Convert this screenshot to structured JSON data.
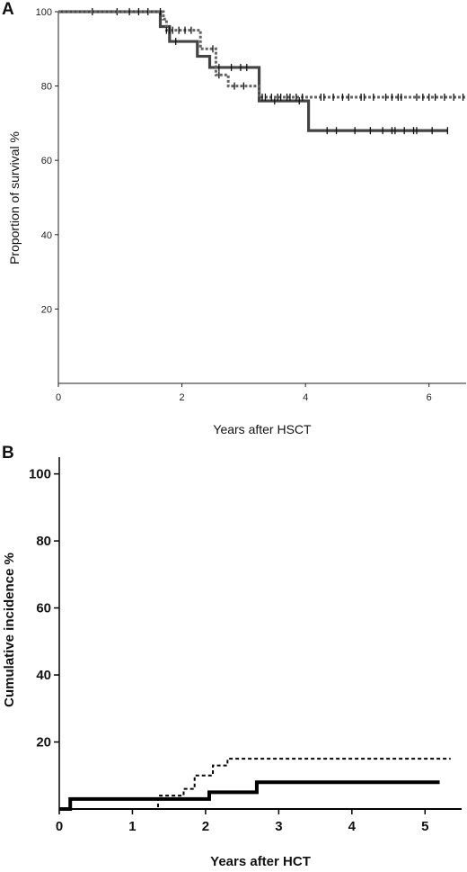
{
  "chart_data": [
    {
      "panel": "A",
      "type": "line",
      "step": true,
      "xlabel": "Years after HSCT",
      "ylabel": "Proportion of survival %",
      "xlim": [
        0,
        6.6
      ],
      "ylim": [
        0,
        100
      ],
      "xticks": [
        "0",
        "2",
        "4",
        "6"
      ],
      "yticks": [
        "20",
        "40",
        "60",
        "80",
        "100"
      ],
      "grid": false,
      "series": [
        {
          "style": "solid",
          "color": "#444444",
          "x": [
            0,
            1.65,
            1.8,
            2.25,
            2.45,
            3.25,
            4.05,
            6.3
          ],
          "y": [
            100,
            96,
            92,
            88,
            85,
            76,
            68,
            68
          ],
          "censor_x": [
            0.55,
            0.95,
            1.15,
            1.3,
            1.45,
            1.9,
            2.6,
            2.8,
            2.95,
            3.05,
            3.5,
            3.9,
            4.35,
            4.5,
            4.8,
            5.05,
            5.25,
            5.4,
            5.45,
            5.6,
            5.75,
            5.8,
            6.05,
            6.3
          ]
        },
        {
          "style": "dashed",
          "color": "#666666",
          "x": [
            0,
            1.7,
            1.75,
            2.3,
            2.55,
            2.75,
            3.25,
            6.6
          ],
          "y": [
            100,
            98,
            95,
            90,
            83,
            80,
            77,
            77
          ],
          "censor_x": [
            1.65,
            1.75,
            1.8,
            1.85,
            1.95,
            2.05,
            2.15,
            2.5,
            2.6,
            2.85,
            3.0,
            3.3,
            3.35,
            3.45,
            3.55,
            3.6,
            3.7,
            3.75,
            3.85,
            3.95,
            4.25,
            4.3,
            4.45,
            4.6,
            4.7,
            4.9,
            4.95,
            5.1,
            5.3,
            5.4,
            5.5,
            5.55,
            5.8,
            5.9,
            6.0,
            6.1,
            6.25,
            6.4,
            6.55
          ]
        }
      ]
    },
    {
      "panel": "B",
      "type": "line",
      "step": true,
      "xlabel": "Years after HCT",
      "ylabel": "Cumulative incidence %",
      "xlim": [
        0,
        5.5
      ],
      "ylim": [
        0,
        105
      ],
      "xticks": [
        "0",
        "1",
        "2",
        "3",
        "4",
        "5"
      ],
      "yticks": [
        "20",
        "40",
        "60",
        "80",
        "100"
      ],
      "grid": false,
      "series": [
        {
          "style": "solid",
          "color": "#000000",
          "x": [
            0,
            0.15,
            2.05,
            2.7,
            5.2
          ],
          "y": [
            0,
            3,
            5,
            8,
            8
          ]
        },
        {
          "style": "dashed",
          "color": "#000000",
          "x": [
            0,
            1.35,
            1.7,
            1.85,
            2.1,
            2.3,
            5.35
          ],
          "y": [
            0,
            4,
            6,
            10,
            13,
            15,
            15
          ]
        }
      ]
    }
  ]
}
